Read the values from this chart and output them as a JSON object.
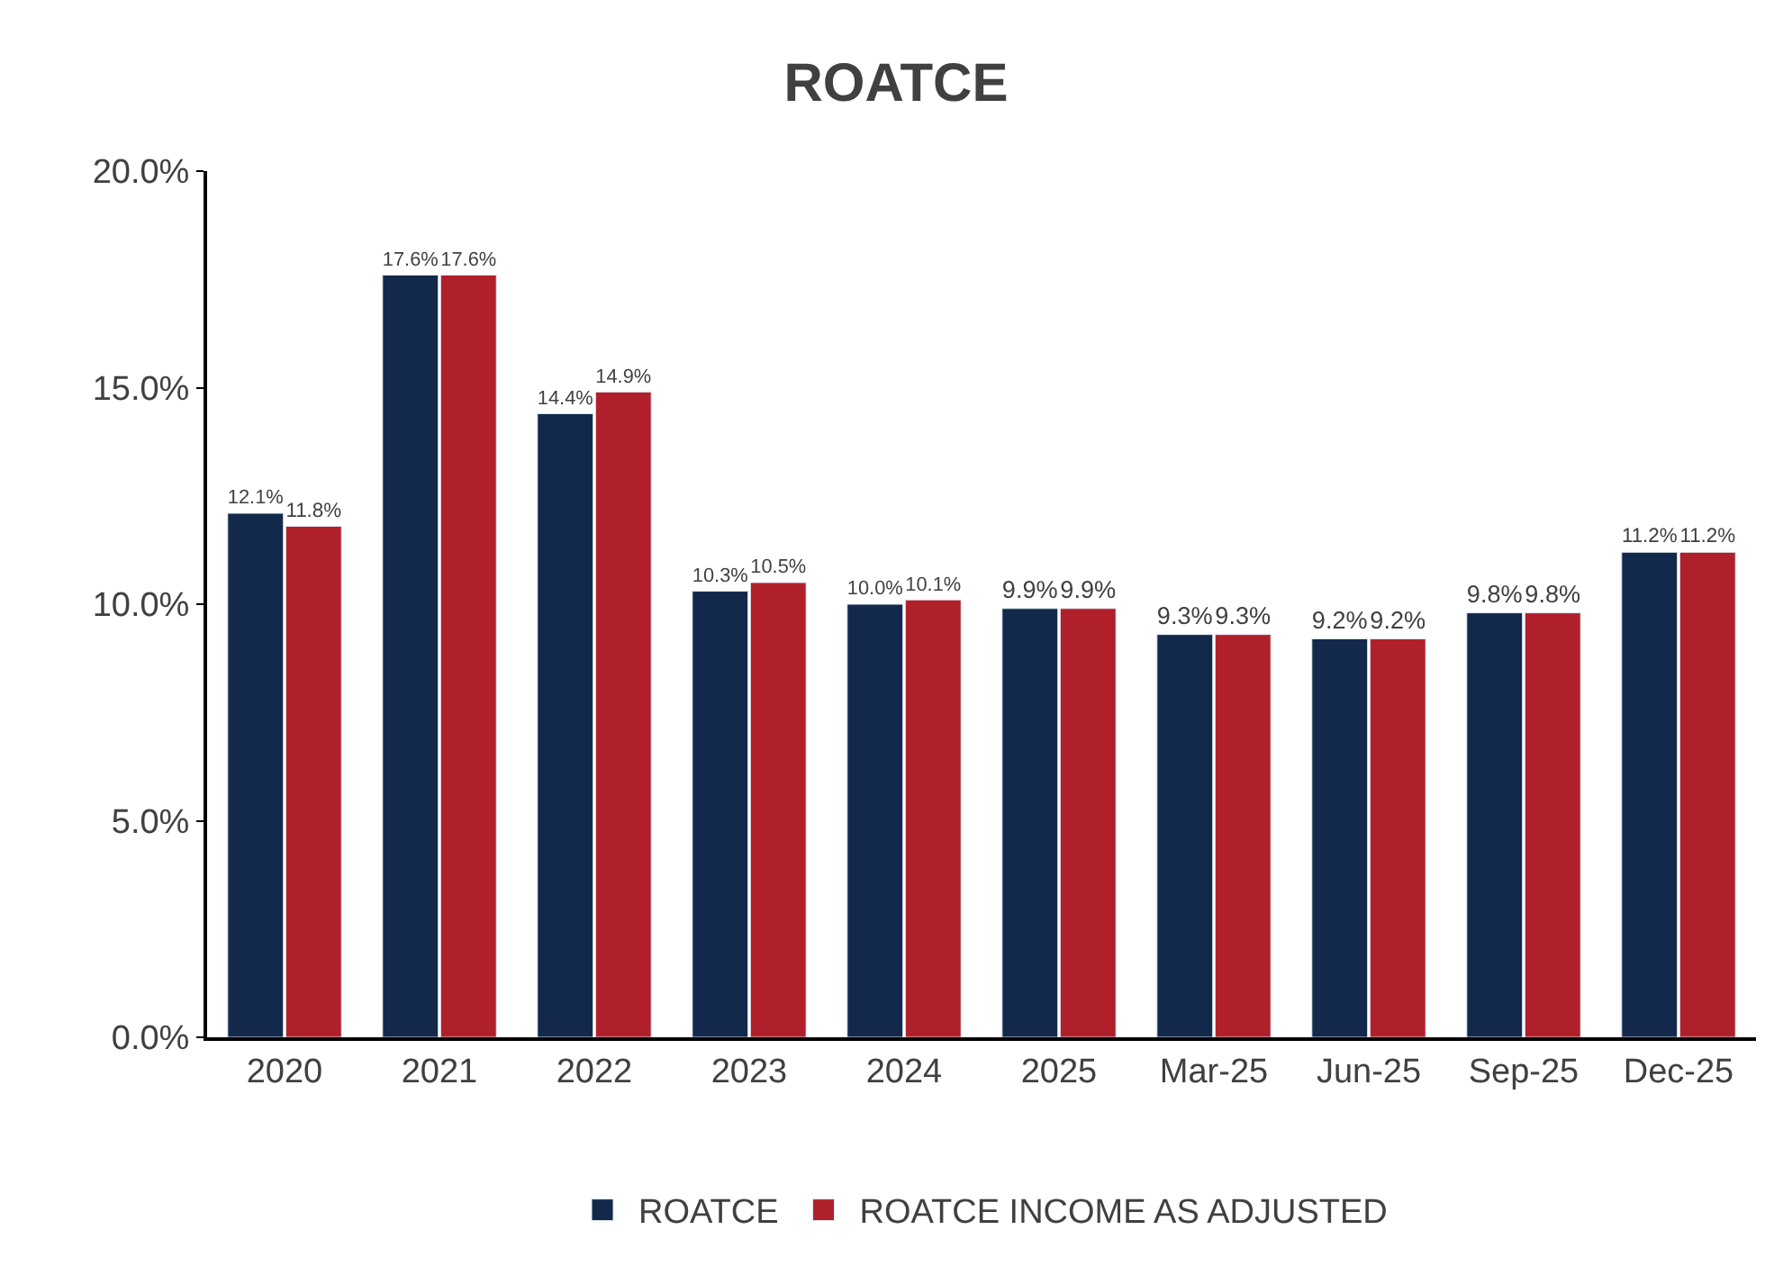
{
  "chart_data": {
    "type": "bar",
    "title": "ROATCE",
    "categories": [
      "2020",
      "2021",
      "2022",
      "2023",
      "2024",
      "2025",
      "Mar-25",
      "Jun-25",
      "Sep-25",
      "Dec-25"
    ],
    "series": [
      {
        "name": "ROATCE",
        "color": "#13294b",
        "values": [
          12.1,
          17.6,
          14.4,
          10.3,
          10.0,
          9.9,
          9.3,
          9.2,
          9.8,
          11.2
        ],
        "value_labels": [
          "12.1%",
          "17.6%",
          "14.4%",
          "10.3%",
          "10.0%",
          "9.9%",
          "9.3%",
          "9.2%",
          "9.8%",
          "11.2%"
        ]
      },
      {
        "name": "ROATCE INCOME AS ADJUSTED",
        "color": "#b0202a",
        "values": [
          11.8,
          17.6,
          14.9,
          10.5,
          10.1,
          9.9,
          9.3,
          9.2,
          9.8,
          11.2
        ],
        "value_labels": [
          "11.8%",
          "17.6%",
          "14.9%",
          "10.5%",
          "10.1%",
          "9.9%",
          "9.3%",
          "9.2%",
          "9.8%",
          "11.2%"
        ]
      }
    ],
    "ylim": [
      0,
      20
    ],
    "yticks": [
      {
        "value": 0,
        "label": "0.0%"
      },
      {
        "value": 5,
        "label": "5.0%"
      },
      {
        "value": 10,
        "label": "10.0%"
      },
      {
        "value": 15,
        "label": "15.0%"
      },
      {
        "value": 20,
        "label": "20.0%"
      }
    ],
    "grid": false,
    "legend": "bottom"
  }
}
